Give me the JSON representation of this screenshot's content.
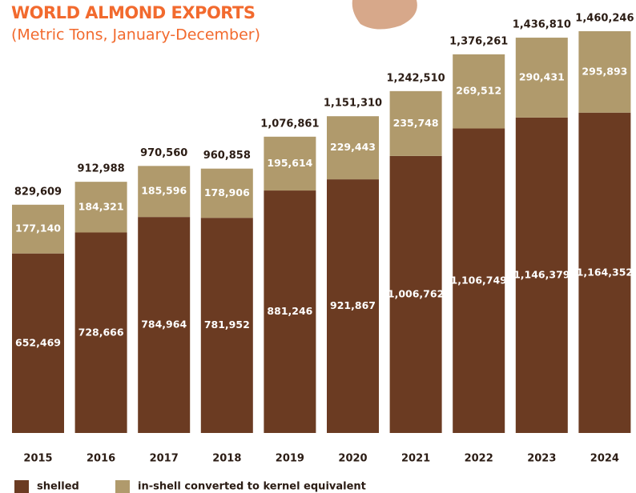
{
  "chart_data": {
    "type": "stacked-bar",
    "title": "WORLD ALMOND EXPORTS",
    "subtitle": "(Metric Tons, January-December)",
    "categories": [
      "2015",
      "2016",
      "2017",
      "2018",
      "2019",
      "2020",
      "2021",
      "2022",
      "2023",
      "2024"
    ],
    "series": [
      {
        "name": "shelled",
        "color": "#6b3b22",
        "values": [
          652469,
          728666,
          784964,
          781952,
          881246,
          921867,
          1006762,
          1106749,
          1146379,
          1164352
        ],
        "value_labels": [
          "652,469",
          "728,666",
          "784,964",
          "781,952",
          "881,246",
          "921,867",
          "1,006,762",
          "1,106,749",
          "1,146,379",
          "1,164,352"
        ]
      },
      {
        "name": "in-shell converted to kernel equivalent",
        "color": "#b09a6c",
        "values": [
          177140,
          184321,
          185596,
          178906,
          195614,
          229443,
          235748,
          269512,
          290431,
          295893
        ],
        "value_labels": [
          "177,140",
          "184,321",
          "185,596",
          "178,906",
          "195,614",
          "229,443",
          "235,748",
          "269,512",
          "290,431",
          "295,893"
        ]
      }
    ],
    "totals": {
      "values": [
        829609,
        912988,
        970560,
        960858,
        1076861,
        1151310,
        1242510,
        1376261,
        1436810,
        1460246
      ],
      "value_labels": [
        "829,609",
        "912,988",
        "970,560",
        "960,858",
        "1,076,861",
        "1,151,310",
        "1,242,510",
        "1,376,261",
        "1,436,810",
        "1,460,246"
      ]
    }
  }
}
